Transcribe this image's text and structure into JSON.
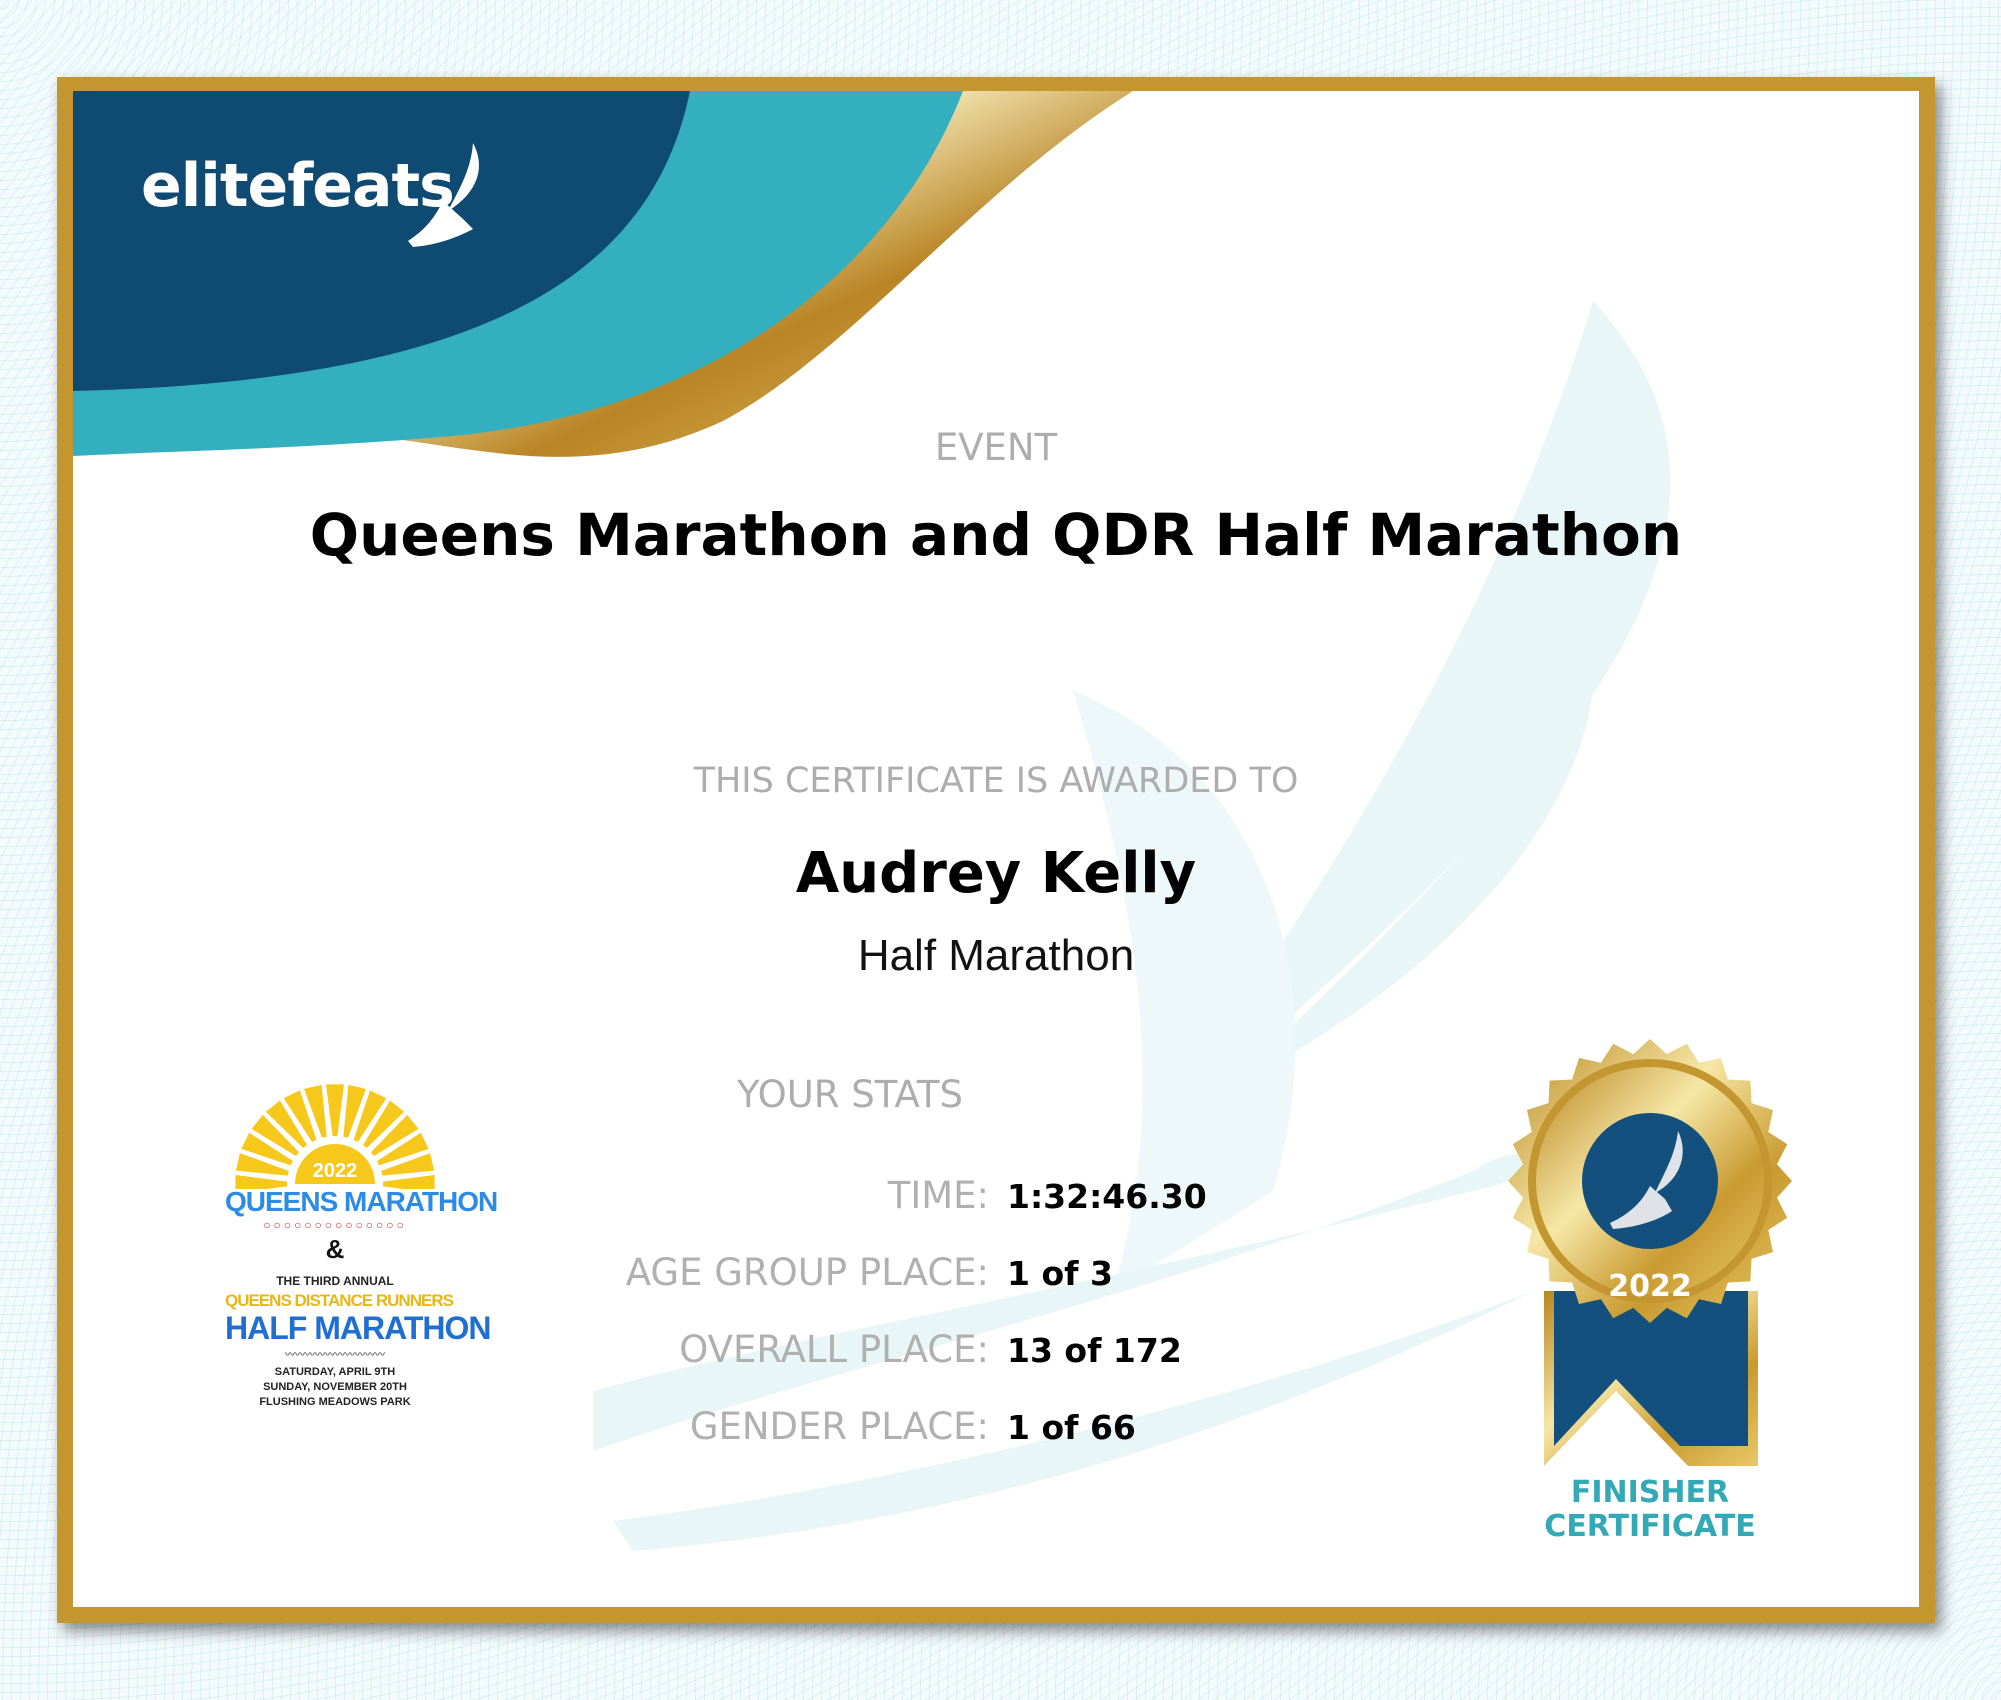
{
  "brand": {
    "name": "elitefeats",
    "colors": {
      "navy": "#0f4a72",
      "teal": "#33afbf",
      "gold": "#c4962f"
    }
  },
  "event": {
    "label": "EVENT",
    "name": "Queens Marathon and QDR Half Marathon"
  },
  "award": {
    "label": "THIS CERTIFICATE IS AWARDED TO",
    "recipient": "Audrey Kelly",
    "race": "Half Marathon"
  },
  "stats": {
    "heading": "YOUR STATS",
    "rows": [
      {
        "label": "TIME:",
        "value": "1:32:46.30"
      },
      {
        "label": "AGE GROUP PLACE:",
        "value": "1 of 3"
      },
      {
        "label": "OVERALL PLACE:",
        "value": "13 of 172"
      },
      {
        "label": "GENDER PLACE:",
        "value": "1 of 66"
      }
    ]
  },
  "event_logo": {
    "year": "2022",
    "line1": "QUEENS MARATHON",
    "amp": "&",
    "line2": "THE THIRD ANNUAL",
    "line3": "QUEENS DISTANCE RUNNERS",
    "line4": "HALF MARATHON",
    "dates": [
      "SATURDAY, APRIL 9TH",
      "SUNDAY, NOVEMBER 20TH",
      "FLUSHING MEADOWS PARK"
    ]
  },
  "medal": {
    "year": "2022",
    "caption1": "FINISHER",
    "caption2": "CERTIFICATE",
    "icon": "winged-foot-icon"
  }
}
